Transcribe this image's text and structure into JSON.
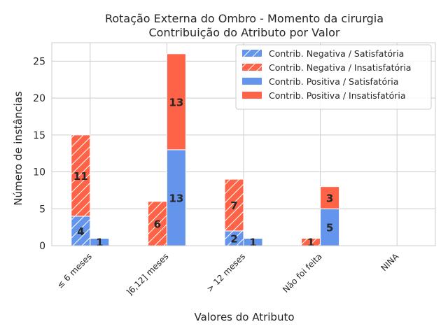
{
  "chart_data": {
    "type": "bar",
    "stacked": true,
    "title": "Rotação Externa do Ombro - Momento da cirurgia",
    "subtitle": "Contribuição do Atributo por Valor",
    "xlabel": "Valores do Atributo",
    "ylabel": "Número de instâncias",
    "categories": [
      "≤ 6 meses",
      "]6,12] meses",
      "> 12 meses",
      "Não foi feita",
      "NINA"
    ],
    "ylim": [
      0,
      27.5
    ],
    "yticks": [
      0,
      5,
      10,
      15,
      20,
      25
    ],
    "grid": true,
    "legend_position": "top-right",
    "groups": [
      {
        "name": "negative",
        "hatched": true,
        "series": [
          {
            "name": "Contrib. Negativa / Satisfatória",
            "color": "#6495ED",
            "values": [
              4,
              0,
              2,
              0,
              0
            ]
          },
          {
            "name": "Contrib. Negativa / Insatisfatória",
            "color": "#FF6347",
            "values": [
              11,
              6,
              7,
              1,
              0
            ]
          }
        ]
      },
      {
        "name": "positive",
        "hatched": false,
        "series": [
          {
            "name": "Contrib. Positiva / Satisfatória",
            "color": "#6495ED",
            "values": [
              1,
              13,
              1,
              5,
              0
            ]
          },
          {
            "name": "Contrib. Positiva / Insatisfatória",
            "color": "#FF6347",
            "values": [
              0,
              13,
              0,
              3,
              0
            ]
          }
        ]
      }
    ]
  }
}
